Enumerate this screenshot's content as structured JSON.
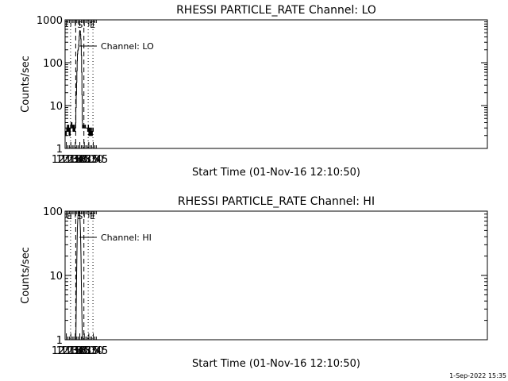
{
  "footer_timestamp": "1-Sep-2022 15:35",
  "chart_data": [
    {
      "type": "line",
      "title": "RHESSI PARTICLE_RATE Channel: LO",
      "xlabel": "Start Time (01-Nov-16 12:10:50)",
      "ylabel": "Counts/sec",
      "y_scale": "log",
      "ylim": [
        1,
        1000
      ],
      "xlim_minutes": [
        0,
        1410
      ],
      "x_ticks": [
        "12:15",
        "12:30",
        "12:45",
        "13:00",
        "13:15",
        "13:30",
        "13:45"
      ],
      "y_ticks": [
        "1",
        "10",
        "100",
        "1000"
      ],
      "legend": {
        "label": "Channel: LO",
        "position": "top-left"
      },
      "dashed_markers": [
        {
          "label": "S",
          "time": "12:46:22"
        },
        {
          "label": "",
          "time": "13:13:39"
        }
      ],
      "dotted_markers": [
        {
          "label": "",
          "time": "12:29:09"
        },
        {
          "label": "E",
          "time": "13:28:00"
        },
        {
          "label": "",
          "time": "13:43:50"
        }
      ],
      "series": [
        {
          "name": "Channel: LO",
          "x": [
            "12:10:50",
            "12:12:00",
            "12:13:00",
            "12:14:00",
            "12:15:00",
            "12:16:00",
            "12:17:00",
            "12:18:00",
            "12:19:00",
            "12:20:00",
            "12:21:00",
            "12:22:00",
            "12:23:00",
            "12:24:00",
            "12:25:00",
            "12:26:00",
            "12:27:00",
            "12:28:00",
            "12:29:00",
            "12:30:00",
            "12:31:00",
            "12:32:00",
            "12:33:00",
            "12:34:00",
            "12:35:00",
            "12:36:00",
            "12:37:00",
            "12:38:00",
            "12:39:00",
            "12:40:00",
            "12:41:00",
            "12:42:00",
            "12:43:00",
            "12:44:00",
            "12:45:00",
            "12:46:00",
            "12:47:00",
            "12:48:00",
            "12:49:00",
            "12:50:00",
            "12:51:00",
            "12:52:00",
            "12:53:00",
            "12:54:00",
            "12:55:00",
            "12:56:00",
            "12:57:00",
            "12:58:00",
            "12:59:00",
            "13:00:00",
            "13:01:00",
            "13:02:00",
            "13:03:00",
            "13:04:00",
            "13:05:00",
            "13:06:00",
            "13:07:00",
            "13:08:00",
            "13:09:00",
            "13:10:00",
            "13:11:00",
            "13:12:00",
            "13:13:00",
            "13:14:00",
            "13:15:00",
            "13:16:00",
            "13:17:00",
            "13:18:00",
            "13:19:00",
            "13:20:00",
            "13:21:00",
            "13:22:00",
            "13:23:00",
            "13:24:00",
            "13:25:00",
            "13:26:00",
            "13:27:00",
            "13:28:00",
            "13:29:00",
            "13:30:00",
            "13:31:00",
            "13:32:00",
            "13:33:00",
            "13:34:00",
            "13:35:00",
            "13:36:00",
            "13:37:00",
            "13:38:00",
            "13:39:00",
            "13:40:00",
            "13:41:00",
            "13:42:00",
            "13:43:00",
            "13:44:00",
            "13:45:00",
            "13:46:00"
          ],
          "values": [
            2.5,
            2,
            2.5,
            2,
            2.5,
            3,
            2.5,
            3.5,
            2.5,
            3,
            2.5,
            3.5,
            2.5,
            2,
            3,
            2.5,
            2,
            3,
            3.5,
            3,
            4,
            3.5,
            4,
            3,
            3.5,
            3,
            2.5,
            3.5,
            3,
            2.5,
            3.5,
            3,
            2.5,
            3,
            3,
            4,
            9,
            18,
            35,
            65,
            110,
            160,
            190,
            200,
            220,
            260,
            330,
            420,
            530,
            560,
            540,
            450,
            360,
            250,
            150,
            60,
            18,
            4.5,
            3,
            3.5,
            3,
            3.5,
            3.5,
            3.5,
            3,
            3,
            3,
            3.5,
            3,
            3,
            3,
            3,
            3,
            3,
            3,
            2.5,
            3,
            3.5,
            2.5,
            2,
            3,
            2.5,
            2,
            3,
            2.5,
            2,
            2.5,
            3,
            2,
            2.5,
            2,
            2.5,
            3,
            2.5,
            3,
            3
          ]
        }
      ]
    },
    {
      "type": "line",
      "title": "RHESSI PARTICLE_RATE Channel: HI",
      "xlabel": "Start Time (01-Nov-16 12:10:50)",
      "ylabel": "Counts/sec",
      "y_scale": "log",
      "ylim": [
        1,
        100
      ],
      "xlim_minutes": [
        0,
        1410
      ],
      "x_ticks": [
        "12:15",
        "12:30",
        "12:45",
        "13:00",
        "13:15",
        "13:30",
        "13:45"
      ],
      "y_ticks": [
        "1",
        "10",
        "100"
      ],
      "legend": {
        "label": "Channel: HI",
        "position": "top-left"
      },
      "dashed_markers": [
        {
          "label": "S",
          "time": "12:46:22"
        },
        {
          "label": "",
          "time": "13:13:39"
        }
      ],
      "dotted_markers": [
        {
          "label": "E",
          "time": "12:10:50"
        },
        {
          "label": "",
          "time": "12:29:09"
        },
        {
          "label": "E",
          "time": "13:28:00"
        },
        {
          "label": "",
          "time": "13:43:50"
        }
      ],
      "series": [
        {
          "name": "Channel: HI",
          "x": [
            "12:47:00",
            "12:48:00",
            "12:49:00",
            "12:50:00",
            "12:51:00",
            "12:52:00",
            "12:53:00",
            "12:54:00",
            "12:55:00",
            "12:56:00",
            "12:57:00",
            "12:58:00",
            "12:59:00",
            "13:00:00",
            "13:01:00",
            "13:02:00",
            "13:03:00",
            "13:04:00",
            "13:05:00",
            "13:06:00",
            "13:07:00",
            "13:08:00",
            "13:09:00"
          ],
          "values": [
            1,
            3,
            8,
            18,
            35,
            55,
            70,
            85,
            92,
            98,
            100,
            98,
            92,
            82,
            68,
            50,
            32,
            18,
            9,
            4.5,
            2.3,
            1.3,
            1
          ]
        }
      ]
    }
  ]
}
